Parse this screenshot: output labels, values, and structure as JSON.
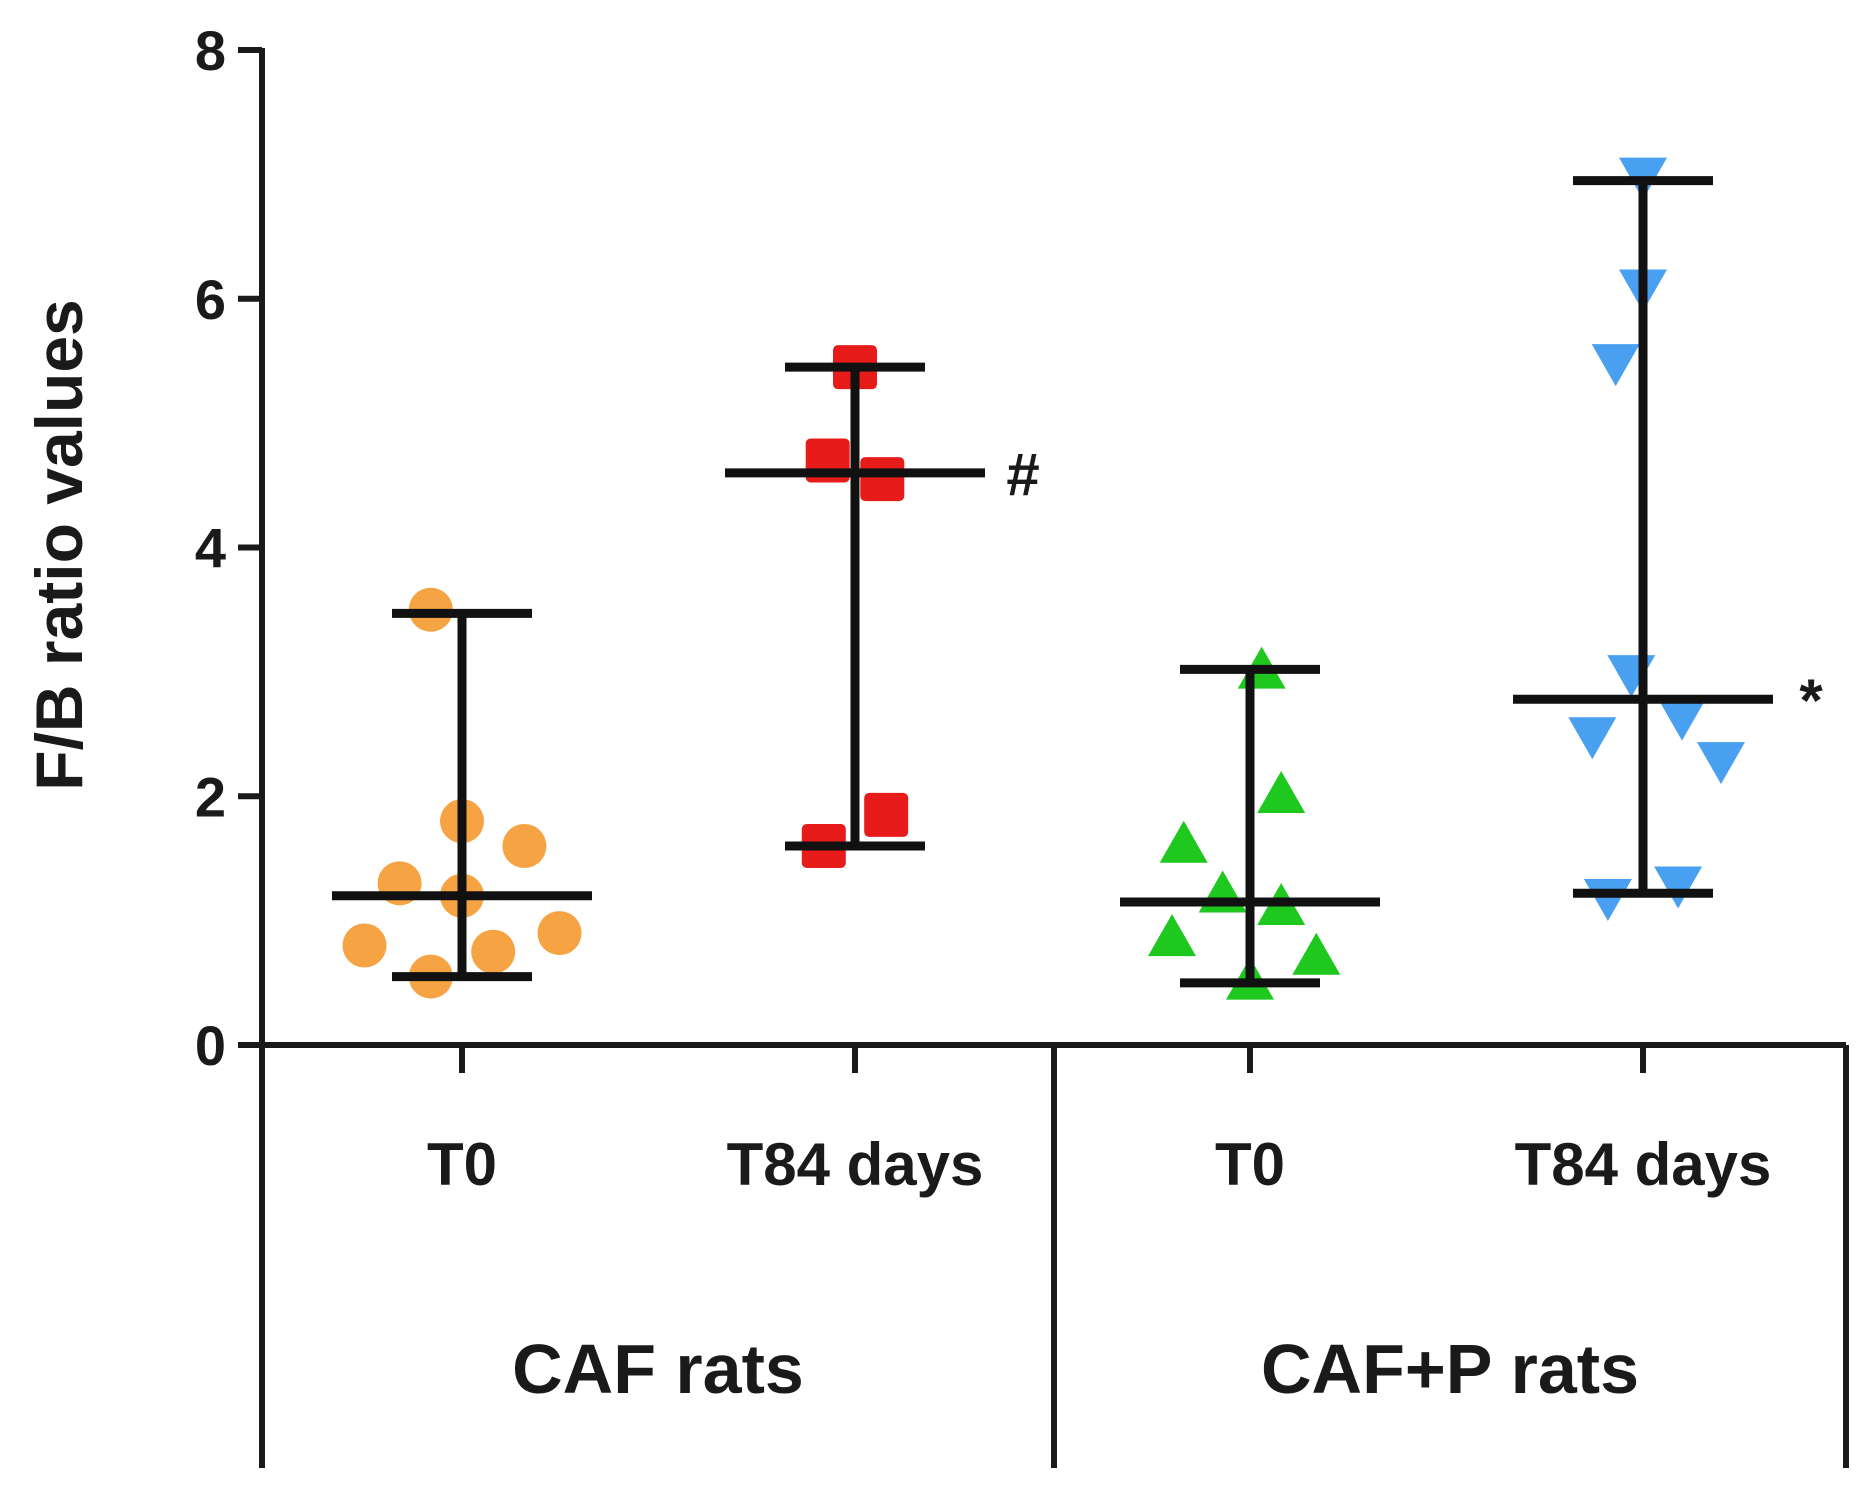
{
  "chart_data": {
    "type": "scatter",
    "title": "",
    "xlabel": "",
    "ylabel": "F/B ratio values",
    "ylim": [
      0,
      8
    ],
    "yticks": [
      0,
      2,
      4,
      6,
      8
    ],
    "groups": [
      {
        "name": "CAF rats",
        "categories": [
          0,
          1
        ]
      },
      {
        "name": "CAF+P rats",
        "categories": [
          2,
          3
        ]
      }
    ],
    "series": [
      {
        "name": "CAF rats T0",
        "category": "T0",
        "marker": "circle",
        "color": "#f5a343",
        "points": [
          [
            -0.08,
            3.5
          ],
          [
            0.0,
            1.8
          ],
          [
            0.16,
            1.6
          ],
          [
            -0.16,
            1.3
          ],
          [
            0.0,
            1.2
          ],
          [
            -0.25,
            0.8
          ],
          [
            0.08,
            0.75
          ],
          [
            0.25,
            0.9
          ],
          [
            -0.08,
            0.55
          ]
        ],
        "median": 1.2,
        "lower": 0.55,
        "upper": 3.47
      },
      {
        "name": "CAF rats T84 days",
        "category": "T84 days",
        "marker": "square",
        "color": "#e81b1b",
        "points": [
          [
            0.0,
            5.45
          ],
          [
            -0.07,
            4.7
          ],
          [
            0.07,
            4.55
          ],
          [
            0.08,
            1.85
          ],
          [
            -0.08,
            1.6
          ]
        ],
        "median": 4.6,
        "lower": 1.6,
        "upper": 5.45,
        "annotation": "#"
      },
      {
        "name": "CAF+P rats T0",
        "category": "T0",
        "marker": "triangle-up",
        "color": "#1ec81e",
        "points": [
          [
            0.03,
            3.0
          ],
          [
            0.08,
            2.0
          ],
          [
            -0.17,
            1.6
          ],
          [
            -0.07,
            1.2
          ],
          [
            0.08,
            1.1
          ],
          [
            -0.2,
            0.85
          ],
          [
            0.17,
            0.7
          ],
          [
            0.0,
            0.5
          ]
        ],
        "median": 1.15,
        "lower": 0.5,
        "upper": 3.02
      },
      {
        "name": "CAF+P rats T84 days",
        "category": "T84 days",
        "marker": "triangle-down",
        "color": "#4aa0f0",
        "points": [
          [
            0.0,
            7.0
          ],
          [
            0.0,
            6.1
          ],
          [
            -0.07,
            5.5
          ],
          [
            -0.03,
            3.0
          ],
          [
            0.1,
            2.65
          ],
          [
            0.2,
            2.3
          ],
          [
            -0.13,
            2.5
          ],
          [
            0.09,
            1.3
          ],
          [
            -0.09,
            1.2
          ]
        ],
        "median": 2.78,
        "lower": 1.22,
        "upper": 6.95,
        "annotation": "*"
      }
    ]
  }
}
